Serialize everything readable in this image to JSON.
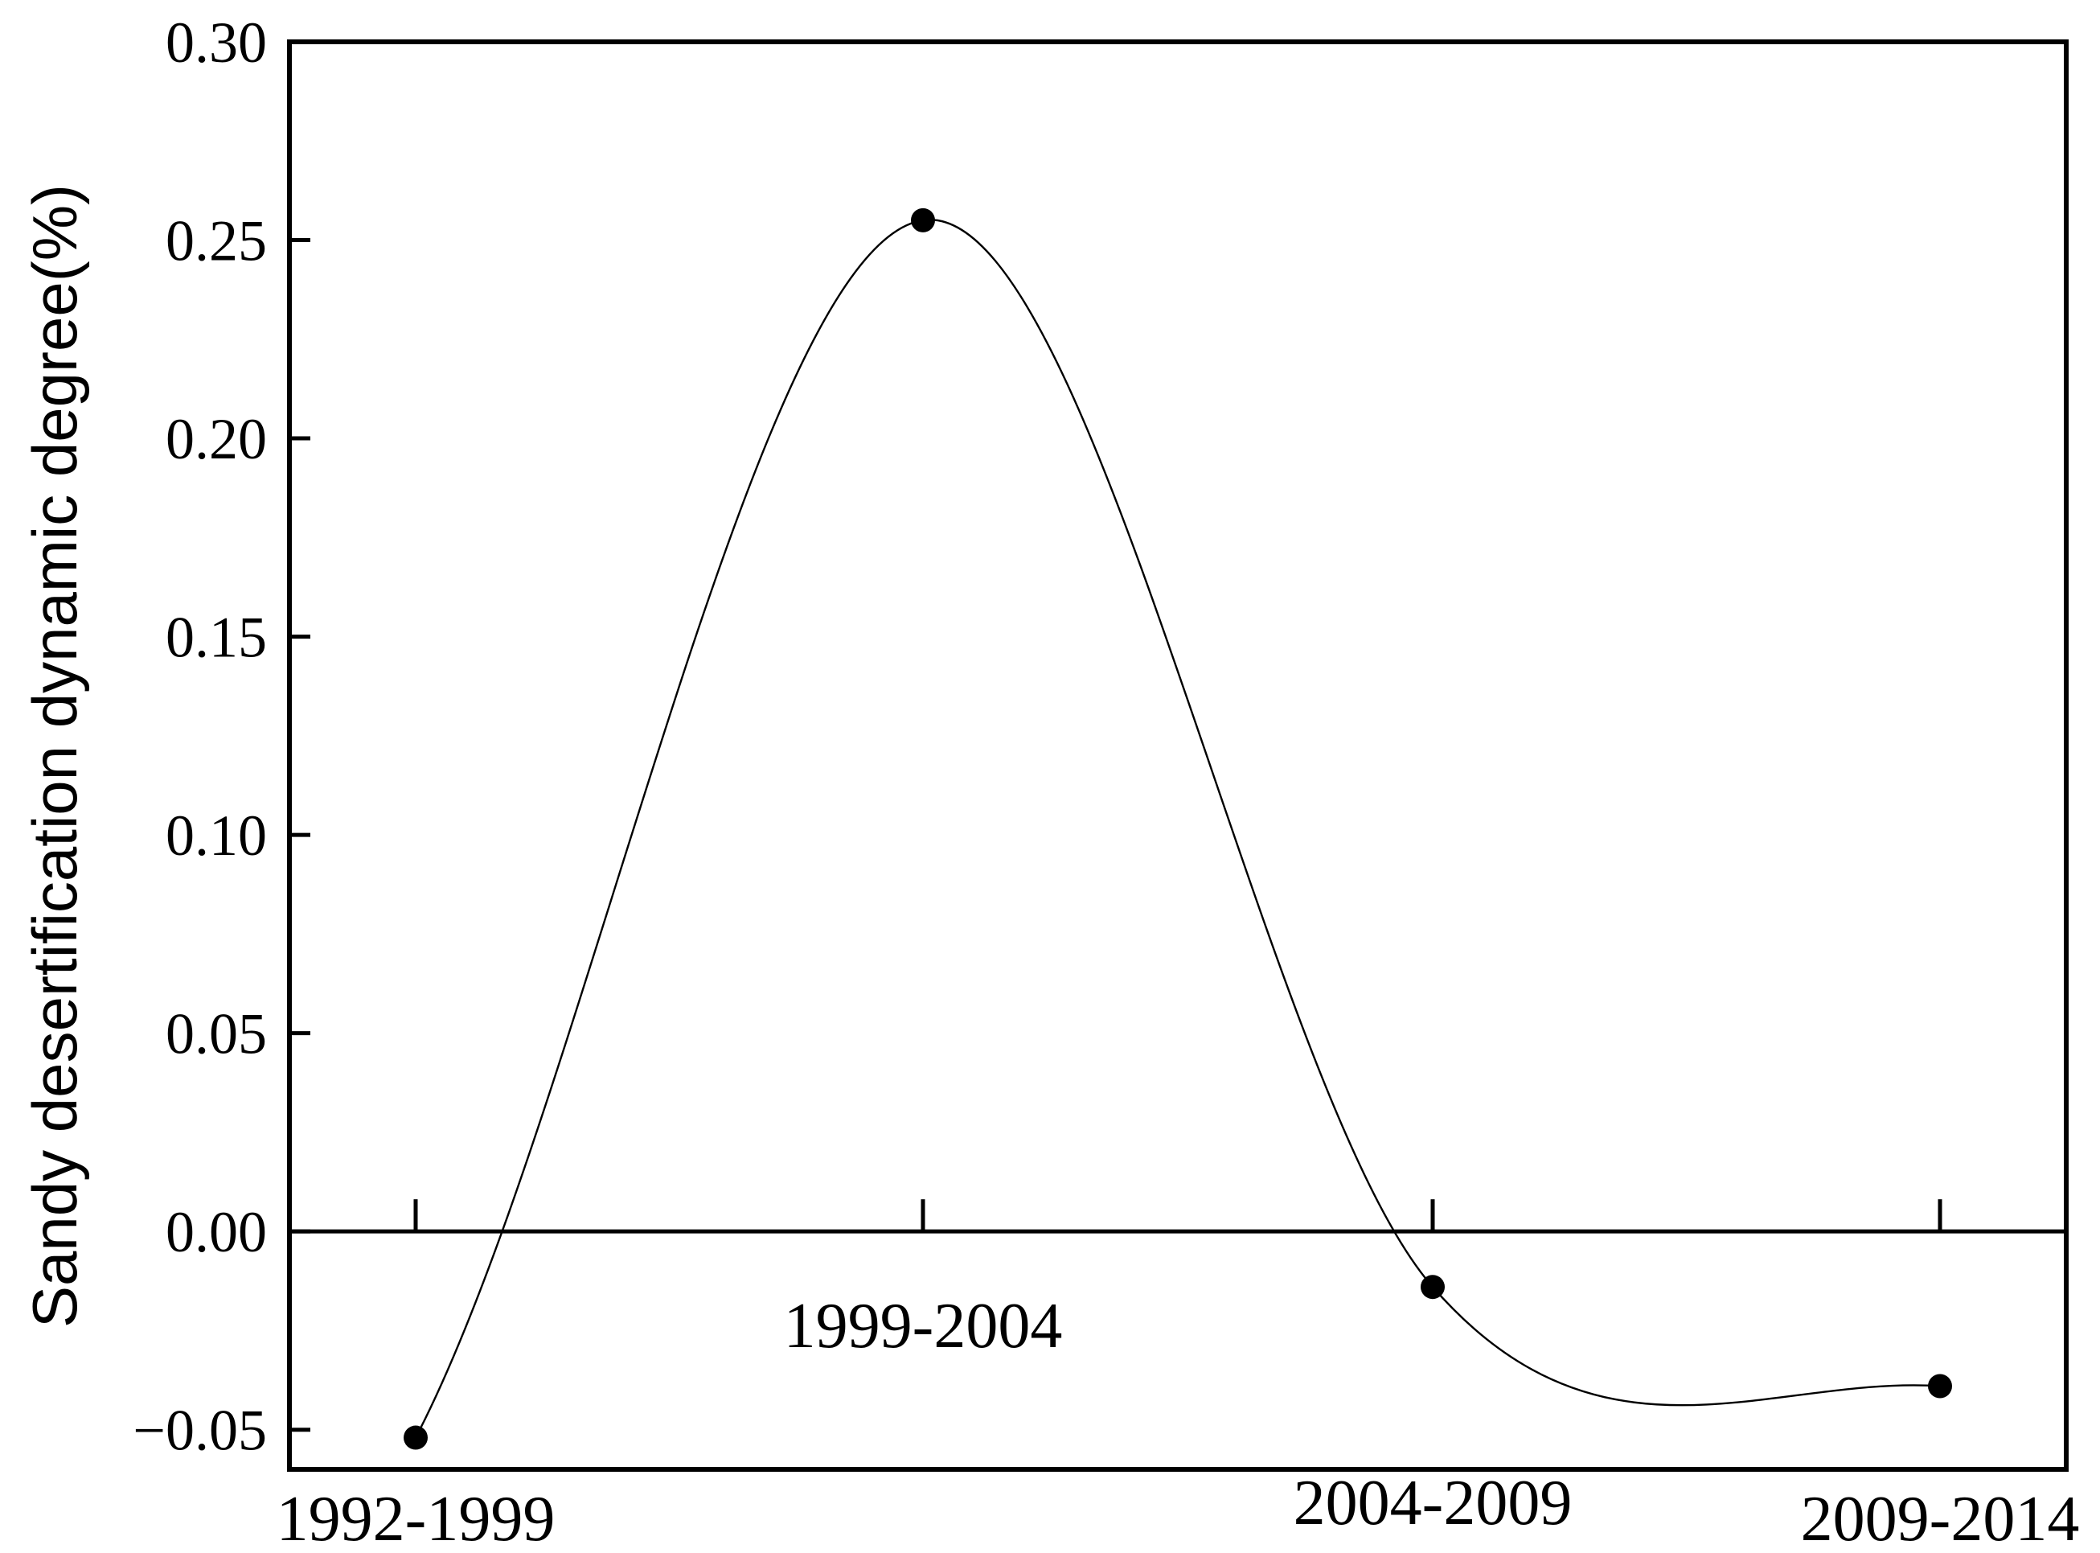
{
  "chart_data": {
    "type": "line",
    "title": "",
    "xlabel": "",
    "ylabel": "Sandy desertification dynamic degree(%)",
    "categories": [
      "1992-1999",
      "1999-2004",
      "2004-2009",
      "2009-2014"
    ],
    "series": [
      {
        "values": [
          -0.052,
          0.255,
          -0.014,
          -0.039
        ]
      }
    ],
    "ylim": [
      -0.06,
      0.3
    ],
    "yticks": [
      -0.05,
      0.0,
      0.05,
      0.1,
      0.15,
      0.2,
      0.25,
      0.3
    ],
    "ytick_labels": [
      "−0.05",
      "0.00",
      "0.05",
      "0.10",
      "0.15",
      "0.20",
      "0.25",
      "0.30"
    ],
    "smooth_curve": true,
    "markers": "filled-circle",
    "grid": false,
    "legend": "none",
    "line_color": "#000000"
  }
}
